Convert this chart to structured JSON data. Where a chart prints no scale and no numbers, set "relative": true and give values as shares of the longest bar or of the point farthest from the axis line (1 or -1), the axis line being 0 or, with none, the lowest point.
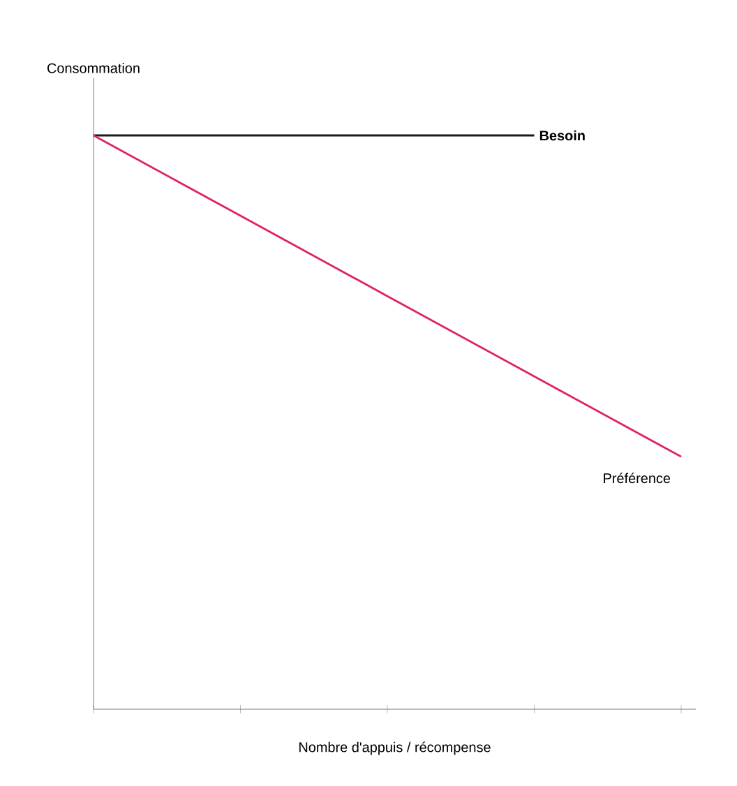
{
  "chart_data": {
    "type": "line",
    "relative": true,
    "ylabel": "Consommation",
    "xlabel": "Nombre d'appuis / récompense",
    "categories": [
      null,
      null,
      null,
      null,
      null
    ],
    "grid": false,
    "marker": "none",
    "line_style": "solid",
    "series": [
      {
        "name": "Besoin",
        "color": "#1a1a1a",
        "values": [
          1,
          1,
          1,
          1,
          null
        ]
      },
      {
        "name": "Préférence",
        "color": "#e0245e",
        "values": [
          1,
          0.86,
          0.72,
          0.58,
          0.44
        ]
      }
    ]
  }
}
